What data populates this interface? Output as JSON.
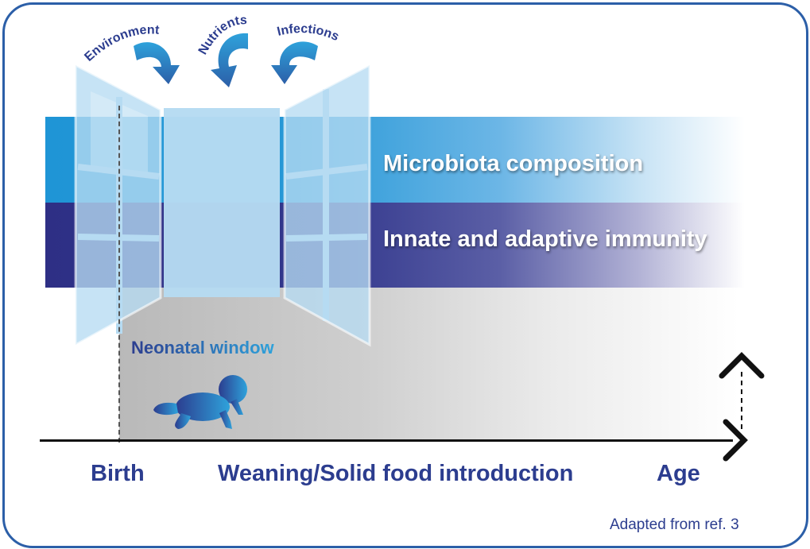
{
  "bands": {
    "top_label": "Microbiota composition",
    "bottom_label": "Innate and adaptive immunity"
  },
  "influences": [
    "Environment",
    "Nutrients",
    "Infections"
  ],
  "window_label": "Neonatal window",
  "axis": {
    "birth": "Birth",
    "weaning": "Weaning/Solid food introduction",
    "age": "Age"
  },
  "credit": "Adapted from ref. 3",
  "colors": {
    "frame": "#2c5fa8",
    "microbiota_band": "#1f95d6",
    "immunity_band": "#2e2f85",
    "window_frame": "#b6dbf2",
    "text_dark_blue": "#2c3d8f"
  },
  "icons": [
    "curved-arrow-icon",
    "baby-icon",
    "up-arrow-icon",
    "right-arrow-icon"
  ]
}
